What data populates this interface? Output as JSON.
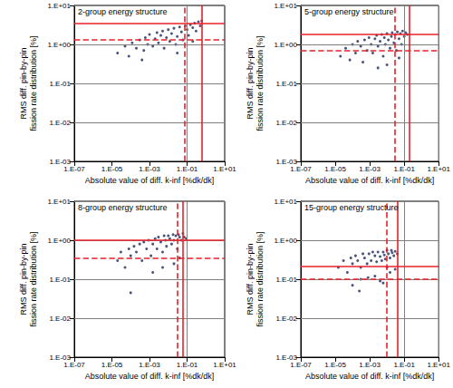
{
  "chart_data": [
    {
      "type": "scatter",
      "title": "2-group energy structure",
      "xlabel": "Absolute value of diff. k-inf [%dk/dk]",
      "ylabel": "RMS diff. pin-by-pin\nfission rate distribution [%]",
      "log": true,
      "grid": true,
      "marker": "circle",
      "color": "#1b2a5c",
      "xlim": [
        1e-07,
        10
      ],
      "ylim": [
        0.001,
        10
      ],
      "xticks": [
        {
          "value": 1e-07,
          "label": "1.E-07"
        },
        {
          "value": 1e-05,
          "label": "1.E-05"
        },
        {
          "value": 0.001,
          "label": "1.E-03"
        },
        {
          "value": 0.1,
          "label": "1.E-01"
        },
        {
          "value": 10,
          "label": "1.E+01"
        }
      ],
      "yticks": [
        {
          "value": 0.001,
          "label": "1.E-03"
        },
        {
          "value": 0.01,
          "label": "1.E-02"
        },
        {
          "value": 0.1,
          "label": "1.E-01"
        },
        {
          "value": 1,
          "label": "1.E+00"
        },
        {
          "value": 10,
          "label": "1.E+01"
        }
      ],
      "x": [
        2e-05,
        5e-05,
        8e-05,
        0.00012,
        0.0002,
        0.0003,
        0.0004,
        0.0005,
        0.0006,
        0.0008,
        0.001,
        0.0015,
        0.002,
        0.0025,
        0.003,
        0.004,
        0.005,
        0.006,
        0.008,
        0.01,
        0.012,
        0.015,
        0.02,
        0.025,
        0.03,
        0.04,
        0.05,
        0.06,
        0.08,
        0.1,
        0.12,
        0.15,
        0.2,
        0.25,
        0.3,
        0.4,
        0.5,
        0.6,
        0.03,
        0.2
      ],
      "values": [
        0.6,
        0.9,
        0.5,
        1.1,
        0.8,
        1.3,
        0.4,
        0.7,
        1.5,
        1.0,
        1.8,
        0.9,
        1.4,
        2.0,
        1.1,
        1.7,
        2.2,
        0.8,
        1.5,
        2.4,
        1.2,
        1.9,
        2.6,
        1.0,
        1.6,
        2.8,
        2.1,
        1.3,
        3.0,
        2.4,
        1.7,
        3.2,
        2.7,
        3.5,
        2.2,
        3.8,
        3.0,
        4.0,
        0.6,
        1.2
      ],
      "reference_lines": [
        {
          "axis": "x",
          "value": 0.6,
          "line_style": "solid",
          "color": "#e8202a"
        },
        {
          "axis": "x",
          "value": 0.07,
          "line_style": "dashed",
          "color": "#e8202a"
        },
        {
          "axis": "y",
          "value": 3.5,
          "line_style": "solid",
          "color": "#e8202a"
        },
        {
          "axis": "y",
          "value": 1.3,
          "line_style": "dashed",
          "color": "#e8202a"
        }
      ]
    },
    {
      "type": "scatter",
      "title": "5-group energy structure",
      "xlabel": "Absolute value of diff. k-inf [%dk/dk]",
      "ylabel": "RMS diff. pin-by-pin\nfission rate distribution [%]",
      "log": true,
      "grid": true,
      "marker": "circle",
      "color": "#1b2a5c",
      "xlim": [
        1e-07,
        10
      ],
      "ylim": [
        0.001,
        10
      ],
      "xticks": [
        {
          "value": 1e-07,
          "label": "1.E-07"
        },
        {
          "value": 1e-05,
          "label": "1.E-05"
        },
        {
          "value": 0.001,
          "label": "1.E-03"
        },
        {
          "value": 0.1,
          "label": "1.E-01"
        },
        {
          "value": 10,
          "label": "1.E+01"
        }
      ],
      "yticks": [
        {
          "value": 0.001,
          "label": "1.E-03"
        },
        {
          "value": 0.01,
          "label": "1.E-02"
        },
        {
          "value": 0.1,
          "label": "1.E-01"
        },
        {
          "value": 1,
          "label": "1.E+00"
        },
        {
          "value": 10,
          "label": "1.E+01"
        }
      ],
      "x": [
        2e-05,
        4e-05,
        7e-05,
        0.0001,
        0.00015,
        0.0002,
        0.0003,
        0.0004,
        0.0005,
        0.0007,
        0.0009,
        0.0012,
        0.0015,
        0.002,
        0.0025,
        0.003,
        0.004,
        0.005,
        0.006,
        0.007,
        0.008,
        0.01,
        0.012,
        0.015,
        0.018,
        0.02,
        0.025,
        0.03,
        0.035,
        0.04,
        0.05,
        0.06,
        0.07,
        0.08,
        0.1,
        0.12,
        0.15,
        0.01,
        0.003,
        0.05
      ],
      "values": [
        0.5,
        0.8,
        0.4,
        1.0,
        0.6,
        1.2,
        0.9,
        0.35,
        1.3,
        0.7,
        1.5,
        1.0,
        0.6,
        1.4,
        1.7,
        0.9,
        1.2,
        1.8,
        0.5,
        1.5,
        1.0,
        1.9,
        1.3,
        0.8,
        1.6,
        2.0,
        1.1,
        1.8,
        0.7,
        2.1,
        1.4,
        1.9,
        1.0,
        2.2,
        1.6,
        2.0,
        1.8,
        0.3,
        0.25,
        0.45
      ],
      "reference_lines": [
        {
          "axis": "x",
          "value": 0.2,
          "line_style": "solid",
          "color": "#e8202a"
        },
        {
          "axis": "x",
          "value": 0.03,
          "line_style": "dashed",
          "color": "#e8202a"
        },
        {
          "axis": "y",
          "value": 1.8,
          "line_style": "solid",
          "color": "#e8202a"
        },
        {
          "axis": "y",
          "value": 0.7,
          "line_style": "dashed",
          "color": "#e8202a"
        }
      ]
    },
    {
      "type": "scatter",
      "title": "8-group energy structure",
      "xlabel": "Absolute value of diff. k-inf [%dk/dk]",
      "ylabel": "RMS diff. pin-by-pin\nfission rate distribution [%]",
      "log": true,
      "grid": true,
      "marker": "circle",
      "color": "#1b2a5c",
      "xlim": [
        1e-07,
        10
      ],
      "ylim": [
        0.001,
        10
      ],
      "xticks": [
        {
          "value": 1e-07,
          "label": "1.E-07"
        },
        {
          "value": 1e-05,
          "label": "1.E-05"
        },
        {
          "value": 0.001,
          "label": "1.E-03"
        },
        {
          "value": 0.1,
          "label": "1.E-01"
        },
        {
          "value": 10,
          "label": "1.E+01"
        }
      ],
      "yticks": [
        {
          "value": 0.001,
          "label": "1.E-03"
        },
        {
          "value": 0.01,
          "label": "1.E-02"
        },
        {
          "value": 0.1,
          "label": "1.E-01"
        },
        {
          "value": 1,
          "label": "1.E+00"
        },
        {
          "value": 10,
          "label": "1.E+01"
        }
      ],
      "x": [
        2e-05,
        3e-05,
        5e-05,
        8e-05,
        0.0001,
        0.00015,
        0.0002,
        0.0003,
        0.0004,
        0.0005,
        0.0007,
        0.0009,
        0.0012,
        0.0015,
        0.002,
        0.0025,
        0.003,
        0.004,
        0.005,
        0.006,
        0.007,
        0.008,
        0.01,
        0.012,
        0.015,
        0.018,
        0.02,
        0.025,
        0.03,
        0.035,
        0.04,
        0.05,
        0.06,
        0.07,
        0.09,
        0.0001,
        0.005,
        0.02,
        0.0015,
        0.04
      ],
      "values": [
        0.3,
        0.5,
        0.2,
        0.6,
        0.4,
        0.7,
        0.5,
        0.8,
        0.3,
        0.9,
        0.6,
        1.0,
        0.4,
        0.8,
        1.1,
        0.6,
        1.2,
        0.9,
        0.5,
        1.3,
        1.0,
        0.7,
        1.3,
        1.1,
        0.8,
        1.4,
        1.0,
        1.3,
        0.6,
        1.4,
        1.2,
        1.0,
        1.5,
        1.2,
        1.1,
        0.045,
        0.2,
        0.25,
        0.15,
        0.35
      ],
      "reference_lines": [
        {
          "axis": "x",
          "value": 0.06,
          "line_style": "solid",
          "color": "#e8202a"
        },
        {
          "axis": "x",
          "value": 0.03,
          "line_style": "dashed",
          "color": "#e8202a"
        },
        {
          "axis": "y",
          "value": 1.0,
          "line_style": "solid",
          "color": "#e8202a"
        },
        {
          "axis": "y",
          "value": 0.35,
          "line_style": "dashed",
          "color": "#e8202a"
        }
      ]
    },
    {
      "type": "scatter",
      "title": "15-group energy structure",
      "xlabel": "Absolute value of diff. k-inf [%dk/dk]",
      "ylabel": "RMS diff. pin-by-pin\nfission rate distribution [%]",
      "log": true,
      "grid": true,
      "marker": "circle",
      "color": "#1b2a5c",
      "xlim": [
        1e-07,
        10
      ],
      "ylim": [
        0.001,
        10
      ],
      "xticks": [
        {
          "value": 1e-07,
          "label": "1.E-07"
        },
        {
          "value": 1e-05,
          "label": "1.E-05"
        },
        {
          "value": 0.001,
          "label": "1.E-03"
        },
        {
          "value": 0.1,
          "label": "1.E-01"
        },
        {
          "value": 10,
          "label": "1.E+01"
        }
      ],
      "yticks": [
        {
          "value": 0.001,
          "label": "1.E-03"
        },
        {
          "value": 0.01,
          "label": "1.E-02"
        },
        {
          "value": 0.1,
          "label": "1.E-01"
        },
        {
          "value": 1,
          "label": "1.E+00"
        },
        {
          "value": 10,
          "label": "1.E+01"
        }
      ],
      "x": [
        1.5e-05,
        3e-05,
        5e-05,
        8e-05,
        0.0001,
        0.00015,
        0.0002,
        0.0003,
        0.0004,
        0.0005,
        0.0007,
        0.0009,
        0.0012,
        0.0015,
        0.002,
        0.0025,
        0.003,
        0.004,
        0.005,
        0.006,
        0.007,
        0.008,
        0.01,
        0.012,
        0.015,
        0.018,
        0.02,
        0.025,
        0.03,
        0.04,
        0.0001,
        0.0003,
        0.002,
        0.006,
        0.015,
        0.00025,
        0.0008,
        0.004,
        0.01,
        0.03
      ],
      "values": [
        0.2,
        0.3,
        0.15,
        0.35,
        0.25,
        0.4,
        0.3,
        0.2,
        0.45,
        0.35,
        0.25,
        0.45,
        0.3,
        0.5,
        0.4,
        0.28,
        0.5,
        0.38,
        0.3,
        0.5,
        0.42,
        0.33,
        0.55,
        0.45,
        0.35,
        0.55,
        0.48,
        0.4,
        0.52,
        0.45,
        0.07,
        0.1,
        0.12,
        0.08,
        0.15,
        0.05,
        0.11,
        0.09,
        0.2,
        0.18
      ],
      "reference_lines": [
        {
          "axis": "x",
          "value": 0.04,
          "line_style": "solid",
          "color": "#e8202a"
        },
        {
          "axis": "x",
          "value": 0.01,
          "line_style": "dashed",
          "color": "#e8202a"
        },
        {
          "axis": "y",
          "value": 0.22,
          "line_style": "solid",
          "color": "#e8202a"
        },
        {
          "axis": "y",
          "value": 0.1,
          "line_style": "dashed",
          "color": "#e8202a"
        }
      ]
    }
  ]
}
